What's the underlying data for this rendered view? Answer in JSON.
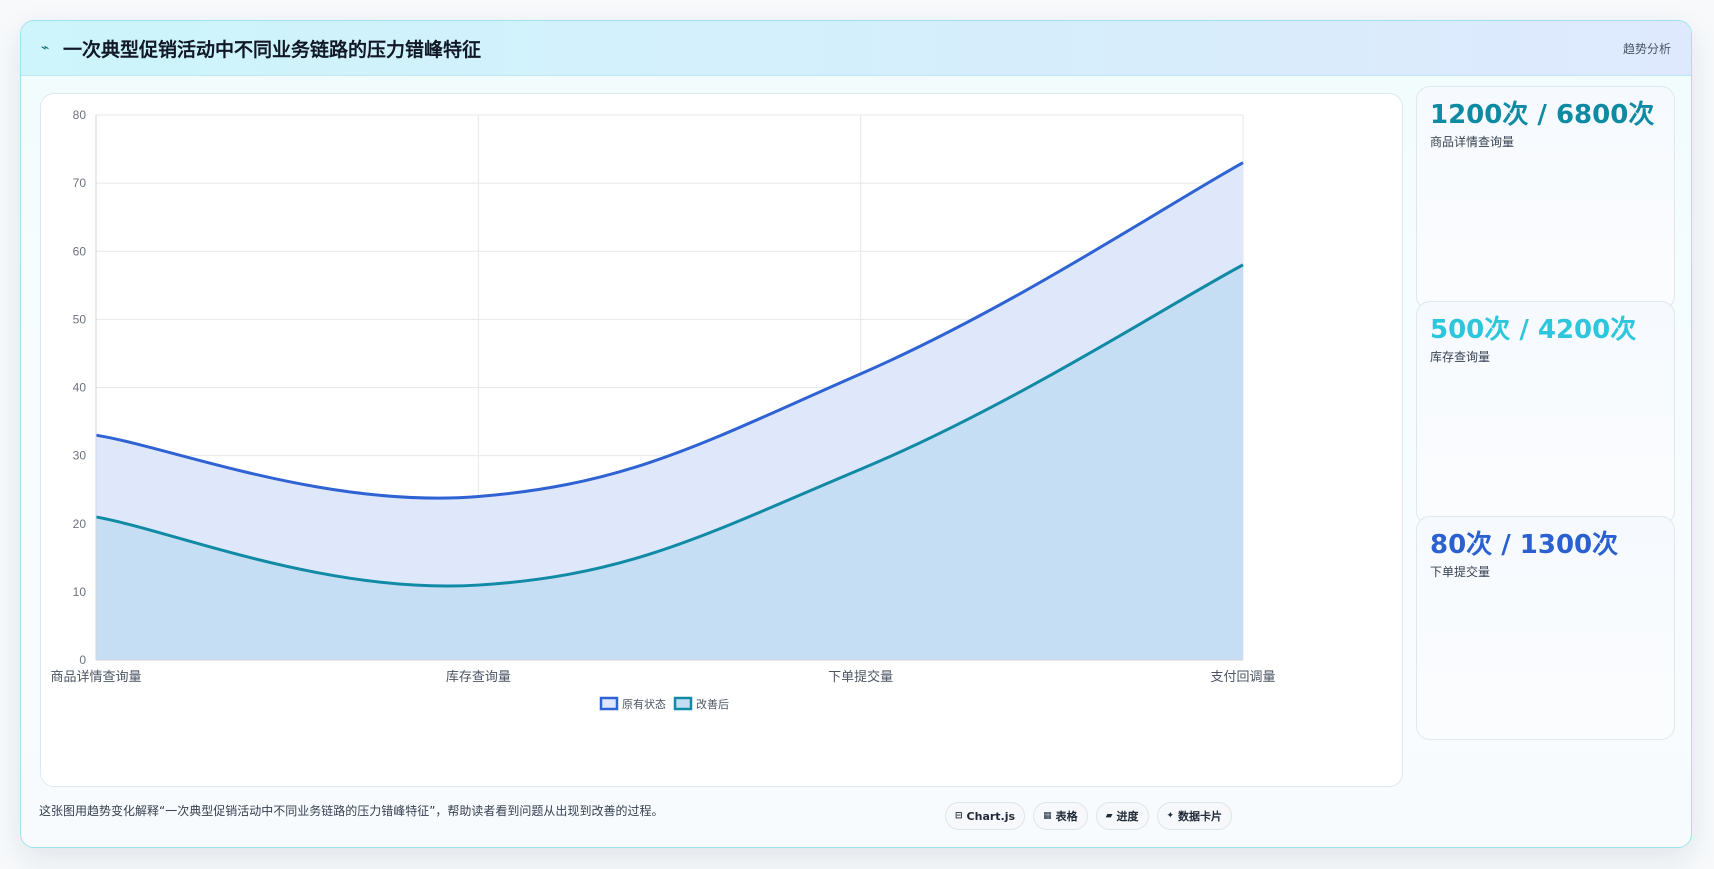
{
  "header": {
    "icon": "⌁",
    "icon_name": "trend-line-icon",
    "title": "一次典型促销活动中不同业务链路的压力错峰特征",
    "tag": "趋势分析"
  },
  "chart_data": {
    "type": "area",
    "categories": [
      "商品详情查询量",
      "库存查询量",
      "下单提交量",
      "支付回调量"
    ],
    "series": [
      {
        "name": "原有状态",
        "values": [
          33,
          24,
          42,
          73
        ],
        "color": "#2f63d4",
        "fill": "#dfe8fb"
      },
      {
        "name": "改善后",
        "values": [
          21,
          11,
          28,
          58
        ],
        "color": "#118aa6",
        "fill": "#c4ddf2"
      }
    ],
    "ylim": [
      0,
      80
    ],
    "yticks": [
      0,
      10,
      20,
      30,
      40,
      50,
      60,
      70,
      80
    ],
    "grid": true,
    "legend": "bottom"
  },
  "cards": [
    {
      "value": "1200次 / 6800次",
      "label": "商品详情查询量",
      "color": "#0e8aa3"
    },
    {
      "value": "500次 / 4200次",
      "label": "库存查询量",
      "color": "#2ec6dc"
    },
    {
      "value": "80次 / 1300次",
      "label": "下单提交量",
      "color": "#2a60d0"
    }
  ],
  "footer": {
    "text": "这张图用趋势变化解释“一次典型促销活动中不同业务链路的压力错峰特征”，帮助读者看到问题从出现到改善的过程。",
    "chips": [
      {
        "icon": "⊟",
        "label": "Chart.js"
      },
      {
        "icon": "▦",
        "label": "表格"
      },
      {
        "icon": "▰",
        "label": "进度"
      },
      {
        "icon": "✦",
        "label": "数据卡片"
      }
    ]
  }
}
